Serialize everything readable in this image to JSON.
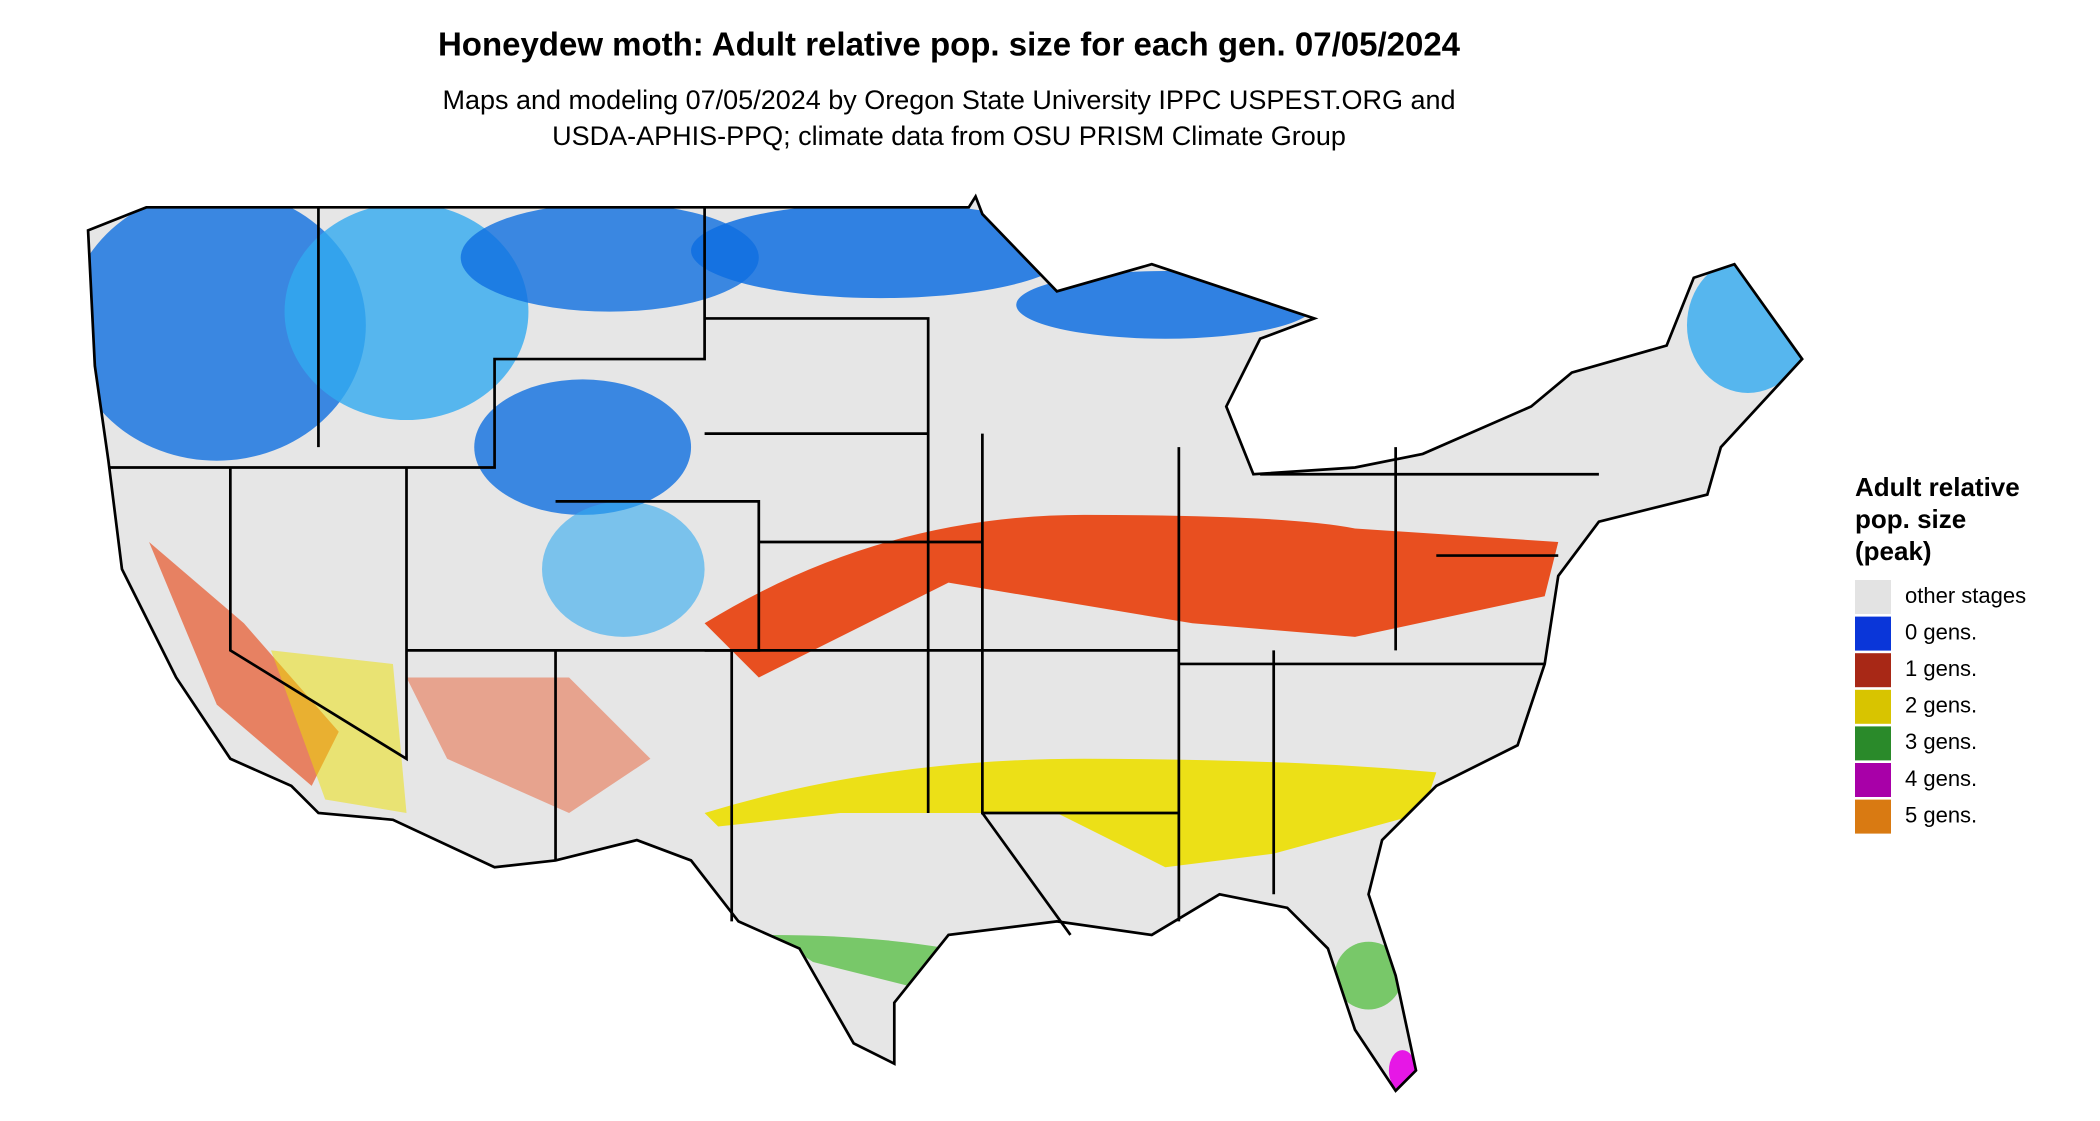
{
  "title": "Honeydew moth: Adult relative pop. size for each gen. 07/05/2024",
  "subtitle": [
    "Maps and modeling 07/05/2024 by Oregon State University IPPC USPEST.ORG and",
    "USDA-APHIS-PPQ; climate data from OSU PRISM Climate Group"
  ],
  "legend": {
    "title": [
      "Adult relative",
      "pop. size",
      "(peak)"
    ],
    "items": [
      {
        "label": "other stages",
        "color": "#e3e3e3"
      },
      {
        "label": "0 gens.",
        "color": "#0a36d9"
      },
      {
        "label": "1 gens.",
        "color": "#a82816"
      },
      {
        "label": "2 gens.",
        "color": "#d8c400"
      },
      {
        "label": "3 gens.",
        "color": "#2a8a2a"
      },
      {
        "label": "4 gens.",
        "color": "#a800a8"
      },
      {
        "label": "5 gens.",
        "color": "#d97a12"
      }
    ]
  }
}
